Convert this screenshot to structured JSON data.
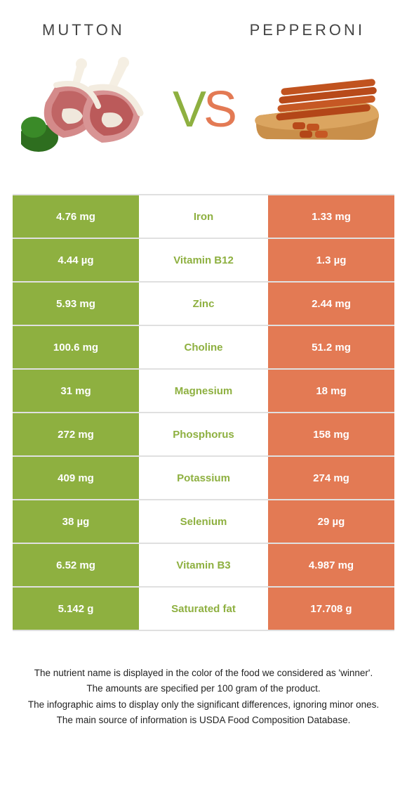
{
  "colors": {
    "left": "#8eb040",
    "right": "#e37a54",
    "mid_to_left": "#8eb040",
    "mid_to_right": "#e37a54"
  },
  "header": {
    "left_title": "MUTTON",
    "right_title": "PEPPERONI",
    "vs_v": "V",
    "vs_s": "S"
  },
  "rows": [
    {
      "left": "4.76 mg",
      "label": "Iron",
      "right": "1.33 mg",
      "winner": "left"
    },
    {
      "left": "4.44 µg",
      "label": "Vitamin B12",
      "right": "1.3 µg",
      "winner": "left"
    },
    {
      "left": "5.93 mg",
      "label": "Zinc",
      "right": "2.44 mg",
      "winner": "left"
    },
    {
      "left": "100.6 mg",
      "label": "Choline",
      "right": "51.2 mg",
      "winner": "left"
    },
    {
      "left": "31 mg",
      "label": "Magnesium",
      "right": "18 mg",
      "winner": "left"
    },
    {
      "left": "272 mg",
      "label": "Phosphorus",
      "right": "158 mg",
      "winner": "left"
    },
    {
      "left": "409 mg",
      "label": "Potassium",
      "right": "274 mg",
      "winner": "left"
    },
    {
      "left": "38 µg",
      "label": "Selenium",
      "right": "29 µg",
      "winner": "left"
    },
    {
      "left": "6.52 mg",
      "label": "Vitamin B3",
      "right": "4.987 mg",
      "winner": "left"
    },
    {
      "left": "5.142 g",
      "label": "Saturated fat",
      "right": "17.708 g",
      "winner": "left"
    }
  ],
  "footnotes": [
    "The nutrient name is displayed in the color of the food we considered as 'winner'.",
    "The amounts are specified per 100 gram of the product.",
    "The infographic aims to display only the significant differences, ignoring minor ones.",
    "The main source of information is USDA Food Composition Database."
  ]
}
